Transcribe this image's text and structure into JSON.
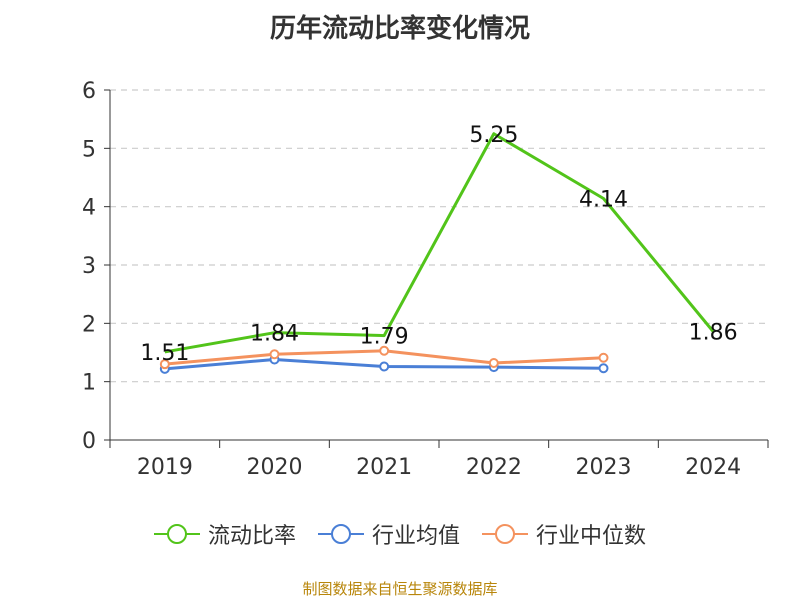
{
  "title": "历年流动比率变化情况",
  "source_note": "制图数据来自恒生聚源数据库",
  "chart_data": {
    "type": "line",
    "categories": [
      "2019",
      "2020",
      "2021",
      "2022",
      "2023",
      "2024"
    ],
    "ylim": [
      0,
      6
    ],
    "yticks": [
      "0",
      "1",
      "2",
      "3",
      "4",
      "5",
      "6"
    ],
    "grid": true,
    "legend_position": "bottom",
    "series": [
      {
        "name": "流动比率",
        "color": "#52c41a",
        "values": [
          1.51,
          1.84,
          1.79,
          5.25,
          4.14,
          1.86
        ],
        "labels": [
          "1.51",
          "1.84",
          "1.79",
          "5.25",
          "4.14",
          "1.86"
        ],
        "show_markers": false
      },
      {
        "name": "行业均值",
        "color": "#4a7fd6",
        "values": [
          1.22,
          1.38,
          1.26,
          1.25,
          1.23,
          null
        ],
        "show_markers": true
      },
      {
        "name": "行业中位数",
        "color": "#f4925e",
        "values": [
          1.3,
          1.47,
          1.53,
          1.32,
          1.41,
          null
        ],
        "show_markers": true
      }
    ]
  }
}
